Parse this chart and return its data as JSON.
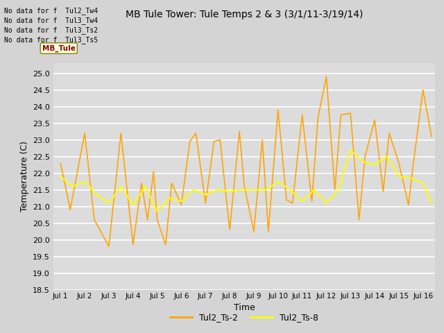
{
  "title": "MB Tule Tower: Tule Temps 2 & 3 (3/1/11-3/19/14)",
  "xlabel": "Time",
  "ylabel": "Temperature (C)",
  "ylim": [
    18.5,
    25.3
  ],
  "yticks": [
    18.5,
    19.0,
    19.5,
    20.0,
    20.5,
    21.0,
    21.5,
    22.0,
    22.5,
    23.0,
    23.5,
    24.0,
    24.5,
    25.0
  ],
  "xtick_labels": [
    "Jul 1",
    "Jul 2",
    "Jul 3",
    "Jul 4",
    "Jul 5",
    "Jul 6",
    "Jul 7",
    "Jul 8",
    "Jul 9",
    "Jul 10",
    "Jul 11",
    "Jul 12",
    "Jul 13",
    "Jul 14",
    "Jul 15",
    "Jul 16"
  ],
  "fig_bg_color": "#d8d8d8",
  "plot_bg_color": "#e0e0e0",
  "grid_color": "#f0f0f0",
  "line1_color": "#FFA500",
  "line2_color": "#FFFF00",
  "line1_label": "Tul2_Ts-2",
  "line2_label": "Tul2_Ts-8",
  "no_data_lines": [
    "No data for f  Tul2_Tw4",
    "No data for f  Tul3_Tw4",
    "No data for f  Tul3_Ts2",
    "No data for f  Tul3_Ts5"
  ],
  "ts2_x": [
    0,
    0.4,
    1.0,
    1.4,
    2.0,
    2.5,
    3.0,
    3.35,
    3.6,
    3.85,
    4.0,
    4.35,
    4.6,
    5.0,
    5.35,
    5.6,
    6.0,
    6.35,
    6.6,
    7.0,
    7.4,
    7.6,
    8.0,
    8.35,
    8.6,
    9.0,
    9.35,
    9.6,
    10.0,
    10.4,
    10.65,
    11.0,
    11.35,
    11.6,
    12.0,
    12.35,
    12.6,
    13.0,
    13.35,
    13.6,
    14.0,
    14.4,
    14.6,
    15.0,
    15.35
  ],
  "ts2_y": [
    22.3,
    20.9,
    23.2,
    20.6,
    19.8,
    23.2,
    19.85,
    21.7,
    20.6,
    22.05,
    20.6,
    19.85,
    21.7,
    21.05,
    22.95,
    23.2,
    21.1,
    22.95,
    23.0,
    20.3,
    23.25,
    21.65,
    20.25,
    23.0,
    20.25,
    23.9,
    21.2,
    21.1,
    23.75,
    21.15,
    23.65,
    24.9,
    21.5,
    23.75,
    23.8,
    20.6,
    22.5,
    23.6,
    21.45,
    23.2,
    22.3,
    21.05,
    22.3,
    24.5,
    23.1
  ],
  "ts8_x": [
    0,
    0.5,
    1.0,
    1.5,
    2.0,
    2.5,
    3.0,
    3.5,
    4.0,
    4.5,
    5.0,
    5.5,
    6.0,
    6.5,
    7.0,
    7.5,
    8.0,
    8.5,
    9.0,
    9.5,
    10.0,
    10.5,
    11.0,
    11.5,
    12.0,
    12.5,
    13.0,
    13.5,
    14.0,
    14.5,
    15.0,
    15.35
  ],
  "ts8_y": [
    21.9,
    21.6,
    21.75,
    21.35,
    21.1,
    21.6,
    21.05,
    21.6,
    20.85,
    21.25,
    21.15,
    21.5,
    21.35,
    21.5,
    21.45,
    21.5,
    21.5,
    21.5,
    21.75,
    21.5,
    21.15,
    21.5,
    21.1,
    21.5,
    22.7,
    22.35,
    22.25,
    22.5,
    21.9,
    21.85,
    21.7,
    21.1
  ]
}
